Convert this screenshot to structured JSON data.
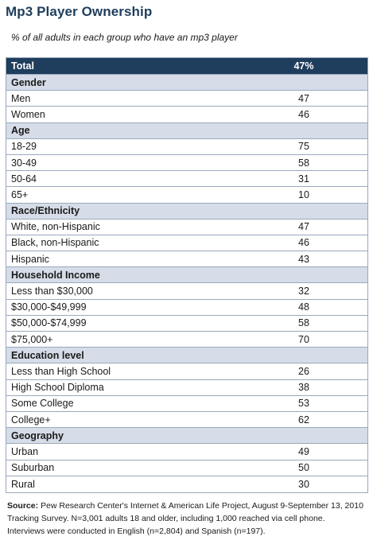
{
  "title": "Mp3 Player Ownership",
  "subtitle": "% of all adults in each group who have an mp3 player",
  "total": {
    "label": "Total",
    "value": "47%"
  },
  "sections": [
    {
      "heading": "Gender",
      "rows": [
        {
          "label": "Men",
          "value": "47"
        },
        {
          "label": "Women",
          "value": "46"
        }
      ]
    },
    {
      "heading": "Age",
      "rows": [
        {
          "label": "18-29",
          "value": "75"
        },
        {
          "label": "30-49",
          "value": "58"
        },
        {
          "label": "50-64",
          "value": "31"
        },
        {
          "label": "65+",
          "value": "10"
        }
      ]
    },
    {
      "heading": "Race/Ethnicity",
      "rows": [
        {
          "label": "White, non-Hispanic",
          "value": "47"
        },
        {
          "label": "Black, non-Hispanic",
          "value": "46"
        },
        {
          "label": "Hispanic",
          "value": "43"
        }
      ]
    },
    {
      "heading": "Household Income",
      "rows": [
        {
          "label": "Less than $30,000",
          "value": "32"
        },
        {
          "label": "$30,000-$49,999",
          "value": "48"
        },
        {
          "label": "$50,000-$74,999",
          "value": "58"
        },
        {
          "label": "$75,000+",
          "value": "70"
        }
      ]
    },
    {
      "heading": "Education level",
      "rows": [
        {
          "label": "Less than High School",
          "value": "26"
        },
        {
          "label": "High School Diploma",
          "value": "38"
        },
        {
          "label": "Some College",
          "value": "53"
        },
        {
          "label": "College+",
          "value": "62"
        }
      ]
    },
    {
      "heading": "Geography",
      "rows": [
        {
          "label": "Urban",
          "value": "49"
        },
        {
          "label": "Suburban",
          "value": "50"
        },
        {
          "label": "Rural",
          "value": "30"
        }
      ]
    }
  ],
  "source": {
    "label": "Source:",
    "text": "Pew Research Center's Internet & American Life Project, August 9-September 13, 2010 Tracking Survey. N=3,001 adults 18 and older, including 1,000 reached via cell phone. Interviews were conducted in English (n=2,804) and Spanish (n=197)."
  }
}
